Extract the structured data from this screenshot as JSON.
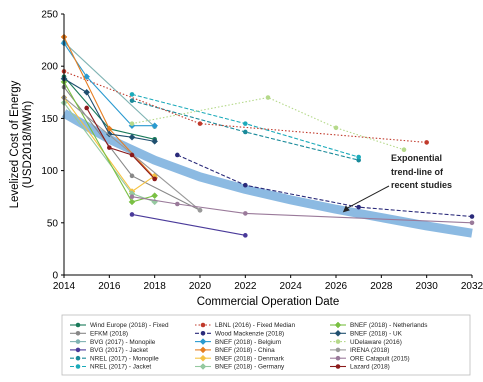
{
  "chart_data": {
    "type": "line",
    "title": "",
    "xlabel": "Commercial Operation Date",
    "ylabel_line1": "Levelized Cost of Energy",
    "ylabel_line2": "(USD2018/MWh)",
    "xlim": [
      2014,
      2032
    ],
    "ylim": [
      0,
      250
    ],
    "xticks": [
      2014,
      2016,
      2018,
      2020,
      2022,
      2024,
      2026,
      2028,
      2030,
      2032
    ],
    "yticks": [
      0,
      50,
      100,
      150,
      200,
      250
    ],
    "grid": false,
    "legend_position": "bottom",
    "annotation": {
      "lines": [
        "Exponential",
        "trend-line of",
        "recent studies"
      ],
      "arrow_to": [
        2026.3,
        60
      ]
    },
    "trend_line": {
      "name": "Exponential trend-line of recent studies",
      "color": "#7fb3df",
      "x": [
        2014,
        2016,
        2018,
        2020,
        2022,
        2024,
        2026,
        2028,
        2030,
        2032
      ],
      "values": [
        155,
        130,
        110,
        94,
        82,
        72,
        63,
        55,
        47,
        40
      ]
    },
    "series": [
      {
        "name": "Wind Europe (2018) - Fixed",
        "color": "#1a7a5a",
        "marker": "circle",
        "dash": "solid",
        "x": [
          2014,
          2016,
          2018
        ],
        "values": [
          190,
          140,
          130
        ]
      },
      {
        "name": "EFKM (2018)",
        "color": "#888888",
        "marker": "circle",
        "dash": "solid",
        "x": [
          2014,
          2017,
          2020
        ],
        "values": [
          180,
          95,
          62
        ]
      },
      {
        "name": "BVG (2017) - Monopile",
        "color": "#7fb3b3",
        "marker": "circle",
        "dash": "solid",
        "x": [
          2014,
          2018
        ],
        "values": [
          223,
          142
        ]
      },
      {
        "name": "BVG (2017) - Jacket",
        "color": "#4a3a9a",
        "marker": "circle",
        "dash": "solid",
        "x": [
          2017,
          2022
        ],
        "values": [
          58,
          38
        ]
      },
      {
        "name": "NREL (2017) - Monopile",
        "color": "#1a8a9a",
        "marker": "circle",
        "dash": "dashed",
        "x": [
          2017,
          2022,
          2027
        ],
        "values": [
          167,
          137,
          110
        ]
      },
      {
        "name": "NREL (2017) - Jacket",
        "color": "#1aaaba",
        "marker": "circle",
        "dash": "dashed",
        "x": [
          2017,
          2022,
          2027
        ],
        "values": [
          173,
          145,
          113
        ]
      },
      {
        "name": "LBNL (2016) - Fixed Median",
        "color": "#c0392b",
        "marker": "circle",
        "dash": "dotted",
        "x": [
          2014,
          2020,
          2030
        ],
        "values": [
          195,
          145,
          127
        ]
      },
      {
        "name": "Wood Mackenzie (2018)",
        "color": "#2a2a7a",
        "marker": "circle",
        "dash": "dashed",
        "x": [
          2019,
          2022,
          2027,
          2032
        ],
        "values": [
          115,
          86,
          65,
          56
        ]
      },
      {
        "name": "BNEF (2018) - Belgium",
        "color": "#2a9ad0",
        "marker": "diamond",
        "dash": "solid",
        "x": [
          2014,
          2015,
          2017,
          2018
        ],
        "values": [
          222,
          190,
          143,
          143
        ]
      },
      {
        "name": "BNEF (2018) - China",
        "color": "#e67e22",
        "marker": "diamond",
        "dash": "solid",
        "x": [
          2014,
          2016,
          2018
        ],
        "values": [
          228,
          140,
          93
        ]
      },
      {
        "name": "BNEF (2018) - Denmark",
        "color": "#f5c242",
        "marker": "diamond",
        "dash": "solid",
        "x": [
          2014,
          2017,
          2018
        ],
        "values": [
          170,
          80,
          95
        ]
      },
      {
        "name": "BNEF (2018) - Germany",
        "color": "#95c9a0",
        "marker": "diamond",
        "dash": "solid",
        "x": [
          2014,
          2017,
          2018
        ],
        "values": [
          165,
          78,
          70
        ]
      },
      {
        "name": "BNEF (2018) - Netherlands",
        "color": "#7ac043",
        "marker": "diamond",
        "dash": "solid",
        "x": [
          2014,
          2017,
          2018
        ],
        "values": [
          185,
          70,
          76
        ]
      },
      {
        "name": "BNEF (2018) - UK",
        "color": "#1f4f6f",
        "marker": "diamond",
        "dash": "solid",
        "x": [
          2014,
          2015,
          2016,
          2017,
          2018
        ],
        "values": [
          188,
          175,
          135,
          132,
          128
        ]
      },
      {
        "name": "UDelaware (2016)",
        "color": "#b5d98a",
        "marker": "circle",
        "dash": "dotted",
        "x": [
          2017,
          2023,
          2026,
          2029
        ],
        "values": [
          145,
          170,
          141,
          120
        ]
      },
      {
        "name": "IRENA (2018)",
        "color": "#999999",
        "marker": "circle",
        "dash": "solid",
        "x": [
          2014,
          2020
        ],
        "values": [
          170,
          62
        ]
      },
      {
        "name": "ORE Catapult (2015)",
        "color": "#9a7a9a",
        "marker": "circle",
        "dash": "solid",
        "x": [
          2017,
          2019,
          2022,
          2032
        ],
        "values": [
          75,
          68,
          59,
          50
        ]
      },
      {
        "name": "Lazard (2018)",
        "color": "#8b1a1a",
        "marker": "circle",
        "dash": "solid",
        "x": [
          2015,
          2016,
          2017,
          2018
        ],
        "values": [
          160,
          122,
          115,
          92
        ]
      }
    ]
  }
}
